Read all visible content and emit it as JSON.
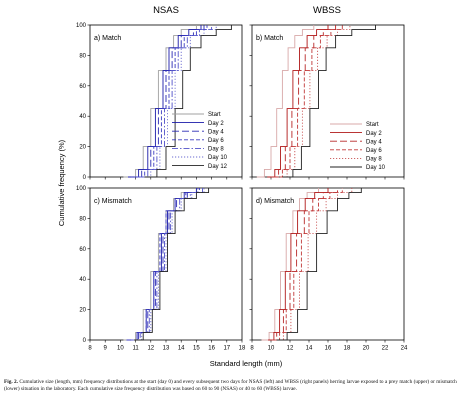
{
  "figure": {
    "col_titles": [
      "NSAS",
      "WBSS"
    ],
    "ylabel": "Cumulative frequency (%)",
    "xlabel": "Standard length (mm)",
    "caption_label": "Fig. 2.",
    "caption_text": "Cumulative size (length, mm) frequency distributions at the start (day 0) and every subsequent two days for NSAS (left) and WBSS (right panels) herring larvae exposed to a prey match (upper) or mismatch (lower) situation in the laboratory. Each cumulative size frequency distribution was based on 60 to 90 (NSAS) or 40 to 60 (WBSS) larvae."
  },
  "chart_data": [
    {
      "type": "line",
      "panel_label": "a) Match",
      "xlim": [
        8,
        18
      ],
      "ylim": [
        0,
        100
      ],
      "x_ticks": [
        8,
        9,
        10,
        11,
        12,
        13,
        14,
        15,
        16,
        17,
        18
      ],
      "y_ticks": [
        0,
        20,
        40,
        60,
        80,
        100
      ],
      "legend_position": "lower-right",
      "series": [
        {
          "name": "Start",
          "x": [
            10.2,
            11.0,
            11.5,
            12.0,
            12.5,
            13.0,
            13.5,
            14.0,
            15.0
          ],
          "y": [
            0,
            5,
            20,
            45,
            70,
            85,
            93,
            97,
            100
          ]
        },
        {
          "name": "Day 2",
          "x": [
            10.5,
            11.2,
            11.8,
            12.3,
            12.8,
            13.2,
            13.8,
            14.5,
            15.3
          ],
          "y": [
            0,
            5,
            20,
            45,
            70,
            85,
            93,
            97,
            100
          ]
        },
        {
          "name": "Day 4",
          "x": [
            10.7,
            11.4,
            12.0,
            12.5,
            13.0,
            13.4,
            14.0,
            14.8,
            15.5
          ],
          "y": [
            0,
            5,
            20,
            45,
            70,
            85,
            93,
            97,
            100
          ]
        },
        {
          "name": "Day 6",
          "x": [
            10.9,
            11.6,
            12.2,
            12.7,
            13.2,
            13.6,
            14.2,
            15.0,
            15.7
          ],
          "y": [
            0,
            5,
            20,
            45,
            70,
            85,
            93,
            97,
            100
          ]
        },
        {
          "name": "Day 8",
          "x": [
            11.1,
            11.8,
            12.4,
            12.9,
            13.4,
            13.8,
            14.4,
            15.2,
            16.0
          ],
          "y": [
            0,
            5,
            20,
            45,
            70,
            85,
            93,
            97,
            100
          ]
        },
        {
          "name": "Day 10",
          "x": [
            11.3,
            12.0,
            12.6,
            13.1,
            13.6,
            14.0,
            14.6,
            15.5,
            16.3
          ],
          "y": [
            0,
            5,
            20,
            45,
            70,
            85,
            93,
            97,
            100
          ]
        },
        {
          "name": "Day 12",
          "x": [
            11.6,
            12.4,
            13.0,
            13.6,
            14.1,
            14.6,
            15.3,
            16.3,
            17.3
          ],
          "y": [
            0,
            5,
            20,
            45,
            70,
            85,
            93,
            97,
            100
          ]
        }
      ]
    },
    {
      "type": "line",
      "panel_label": "b) Match",
      "xlim": [
        8,
        24
      ],
      "ylim": [
        0,
        100
      ],
      "x_ticks": [
        8,
        10,
        12,
        14,
        16,
        18,
        20,
        22,
        24
      ],
      "y_ticks": [
        0,
        20,
        40,
        60,
        80,
        100
      ],
      "legend_position": "lower-right",
      "series": [
        {
          "name": "Start",
          "x": [
            8.5,
            9.3,
            10.0,
            10.6,
            11.2,
            11.8,
            12.5,
            13.3,
            14.5
          ],
          "y": [
            0,
            5,
            20,
            45,
            70,
            85,
            93,
            97,
            100
          ]
        },
        {
          "name": "Day 2",
          "x": [
            9.6,
            10.4,
            11.0,
            11.7,
            12.3,
            13.0,
            13.8,
            14.8,
            16.0
          ],
          "y": [
            0,
            5,
            20,
            45,
            70,
            85,
            93,
            97,
            100
          ]
        },
        {
          "name": "Day 4",
          "x": [
            10.0,
            10.8,
            11.5,
            12.2,
            12.9,
            13.6,
            14.5,
            15.5,
            16.8
          ],
          "y": [
            0,
            5,
            20,
            45,
            70,
            85,
            93,
            97,
            100
          ]
        },
        {
          "name": "Day 6",
          "x": [
            10.3,
            11.2,
            12.0,
            12.8,
            13.5,
            14.3,
            15.2,
            16.3,
            17.5
          ],
          "y": [
            0,
            5,
            20,
            45,
            70,
            85,
            93,
            97,
            100
          ]
        },
        {
          "name": "Day 8",
          "x": [
            10.7,
            11.7,
            12.5,
            13.3,
            14.1,
            14.9,
            15.9,
            17.0,
            18.3
          ],
          "y": [
            0,
            5,
            20,
            45,
            70,
            85,
            93,
            97,
            100
          ]
        },
        {
          "name": "Day 10",
          "x": [
            11.2,
            12.3,
            13.2,
            14.1,
            15.0,
            15.8,
            16.8,
            18.5,
            21.0
          ],
          "y": [
            0,
            5,
            20,
            45,
            70,
            85,
            93,
            97,
            100
          ]
        }
      ]
    },
    {
      "type": "line",
      "panel_label": "c) Mismatch",
      "xlim": [
        8,
        18
      ],
      "ylim": [
        0,
        100
      ],
      "x_ticks": [
        8,
        9,
        10,
        11,
        12,
        13,
        14,
        15,
        16,
        17,
        18
      ],
      "y_ticks": [
        0,
        20,
        40,
        60,
        80,
        100
      ],
      "series": [
        {
          "name": "Start",
          "x": [
            10.2,
            11.0,
            11.5,
            12.0,
            12.5,
            13.0,
            13.5,
            14.0,
            15.0
          ],
          "y": [
            0,
            5,
            20,
            45,
            70,
            85,
            93,
            97,
            100
          ]
        },
        {
          "name": "Day 2",
          "x": [
            10.5,
            11.1,
            11.7,
            12.2,
            12.7,
            13.1,
            13.6,
            14.2,
            15.0
          ],
          "y": [
            0,
            5,
            20,
            45,
            70,
            85,
            93,
            97,
            100
          ]
        },
        {
          "name": "Day 4",
          "x": [
            10.6,
            11.2,
            11.8,
            12.3,
            12.8,
            13.2,
            13.7,
            14.4,
            15.2
          ],
          "y": [
            0,
            5,
            20,
            45,
            70,
            85,
            93,
            97,
            100
          ]
        },
        {
          "name": "Day 6",
          "x": [
            10.4,
            11.1,
            11.7,
            12.2,
            12.6,
            13.0,
            13.6,
            14.3,
            15.1
          ],
          "y": [
            0,
            5,
            20,
            45,
            70,
            85,
            93,
            97,
            100
          ]
        },
        {
          "name": "Day 8",
          "x": [
            10.7,
            11.3,
            11.9,
            12.4,
            12.9,
            13.3,
            13.9,
            14.6,
            15.4
          ],
          "y": [
            0,
            5,
            20,
            45,
            70,
            85,
            93,
            97,
            100
          ]
        },
        {
          "name": "Day 10",
          "x": [
            10.8,
            11.4,
            12.0,
            12.5,
            13.0,
            13.4,
            14.0,
            14.7,
            15.5
          ],
          "y": [
            0,
            5,
            20,
            45,
            70,
            85,
            93,
            97,
            100
          ]
        },
        {
          "name": "Day 12",
          "x": [
            10.9,
            11.5,
            12.1,
            12.6,
            13.1,
            13.6,
            14.2,
            15.0,
            15.8
          ],
          "y": [
            0,
            5,
            20,
            45,
            70,
            85,
            93,
            97,
            100
          ]
        }
      ]
    },
    {
      "type": "line",
      "panel_label": "d) Mismatch",
      "xlim": [
        8,
        24
      ],
      "ylim": [
        0,
        100
      ],
      "x_ticks": [
        8,
        10,
        12,
        14,
        16,
        18,
        20,
        22,
        24
      ],
      "y_ticks": [
        0,
        20,
        40,
        60,
        80,
        100
      ],
      "series": [
        {
          "name": "Start",
          "x": [
            9.0,
            9.8,
            10.4,
            11.0,
            11.6,
            12.3,
            13.0,
            13.8,
            15.0
          ],
          "y": [
            0,
            5,
            20,
            45,
            70,
            85,
            93,
            97,
            100
          ]
        },
        {
          "name": "Day 2",
          "x": [
            9.7,
            10.3,
            10.9,
            11.5,
            12.1,
            12.8,
            13.6,
            14.6,
            16.0
          ],
          "y": [
            0,
            5,
            20,
            45,
            70,
            85,
            93,
            97,
            100
          ]
        },
        {
          "name": "Day 4",
          "x": [
            9.9,
            10.6,
            11.3,
            12.0,
            12.7,
            13.5,
            14.4,
            15.5,
            17.0
          ],
          "y": [
            0,
            5,
            20,
            45,
            70,
            85,
            93,
            97,
            100
          ]
        },
        {
          "name": "Day 6",
          "x": [
            10.1,
            10.9,
            11.6,
            12.4,
            13.2,
            14.0,
            15.0,
            16.2,
            17.5
          ],
          "y": [
            0,
            5,
            20,
            45,
            70,
            85,
            93,
            97,
            100
          ]
        },
        {
          "name": "Day 8",
          "x": [
            10.4,
            11.3,
            12.1,
            13.0,
            13.9,
            14.8,
            15.8,
            17.0,
            18.5
          ],
          "y": [
            0,
            5,
            20,
            45,
            70,
            85,
            93,
            97,
            100
          ]
        },
        {
          "name": "Day 10",
          "x": [
            10.6,
            11.7,
            12.8,
            13.8,
            14.8,
            15.9,
            17.0,
            18.2,
            19.5
          ],
          "y": [
            0,
            5,
            20,
            45,
            70,
            85,
            93,
            97,
            100
          ]
        }
      ]
    }
  ],
  "styles": {
    "NSAS": {
      "Start": {
        "color": "#a0a0a0",
        "dash": ""
      },
      "Day 2": {
        "color": "#1a1aa8",
        "dash": ""
      },
      "Day 4": {
        "color": "#2a2ab4",
        "dash": "7 3"
      },
      "Day 6": {
        "color": "#3a3ac0",
        "dash": "4 2"
      },
      "Day 8": {
        "color": "#5050c8",
        "dash": "6 2 1.5 2"
      },
      "Day 10": {
        "color": "#6a6ad0",
        "dash": "1.2 1.8"
      },
      "Day 12": {
        "color": "#222222",
        "dash": ""
      }
    },
    "WBSS": {
      "Start": {
        "color": "#d8a8a8",
        "dash": ""
      },
      "Day 2": {
        "color": "#b01818",
        "dash": ""
      },
      "Day 4": {
        "color": "#b82828",
        "dash": "7 3"
      },
      "Day 6": {
        "color": "#c03838",
        "dash": "4 2"
      },
      "Day 8": {
        "color": "#c85050",
        "dash": "1.2 1.8"
      },
      "Day 10": {
        "color": "#222222",
        "dash": ""
      }
    }
  }
}
